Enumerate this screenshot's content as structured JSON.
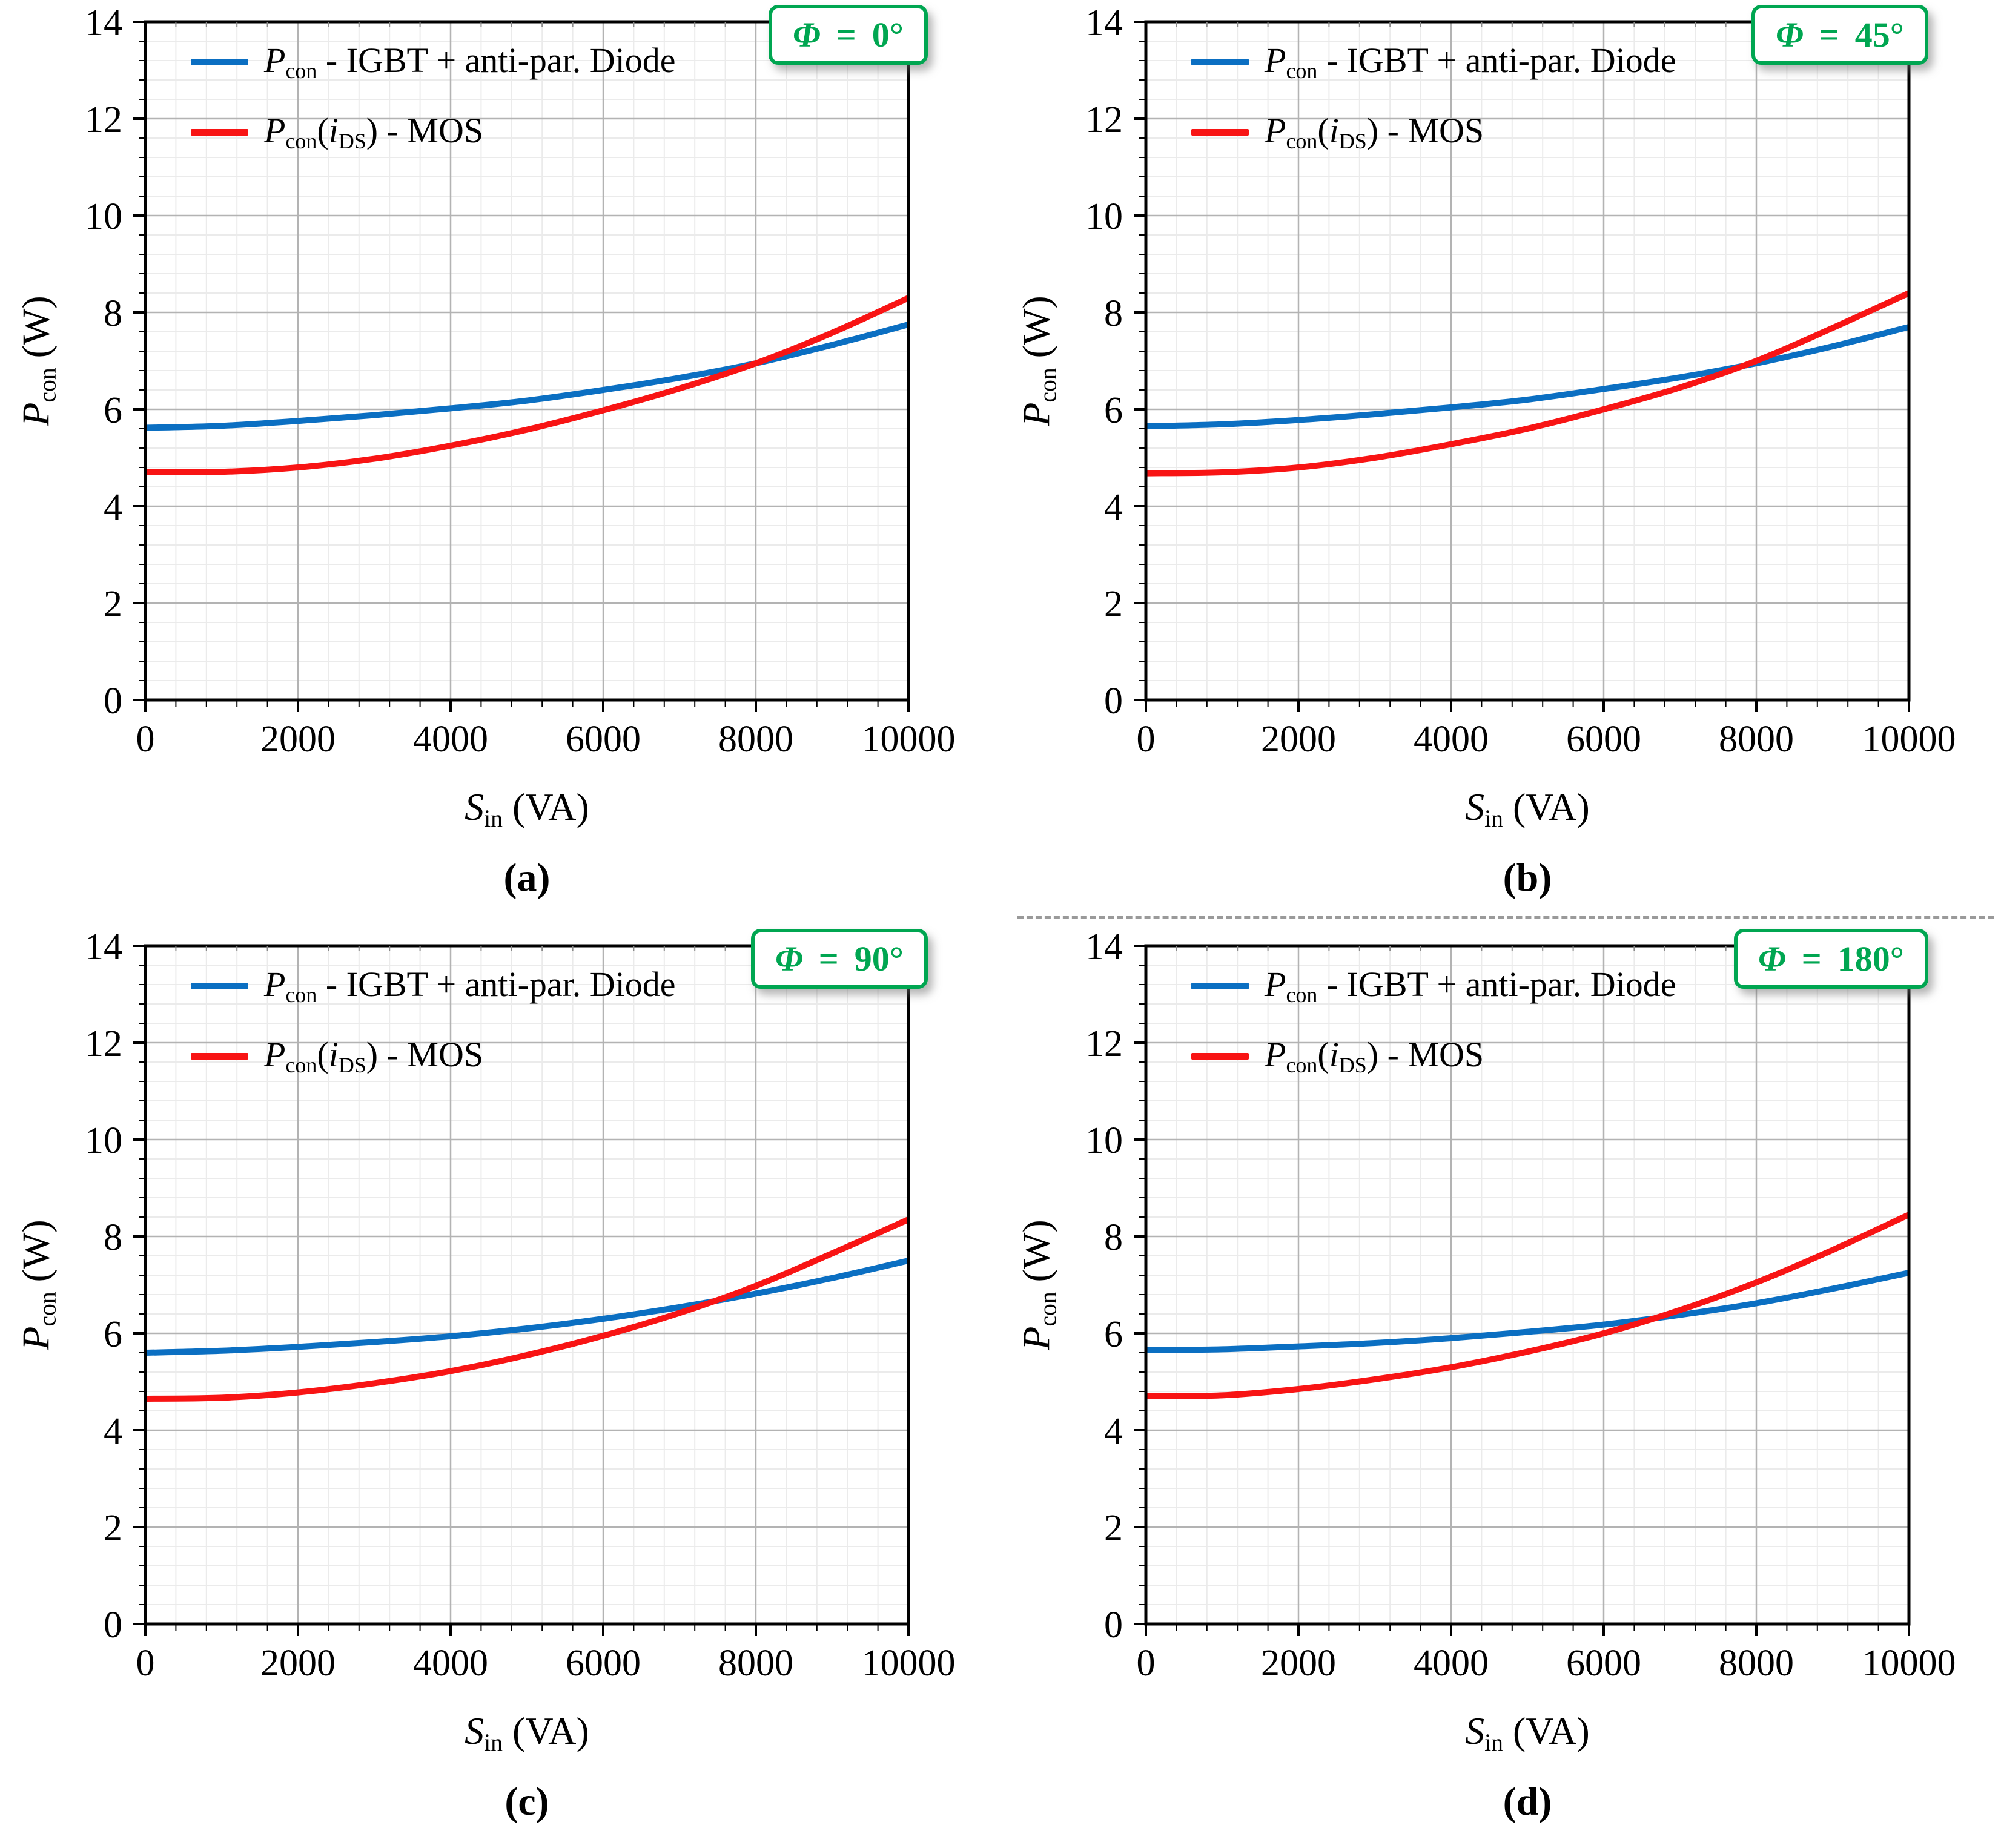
{
  "page": {
    "background": "#ffffff"
  },
  "colors": {
    "igbt_blue": "#0b6fc2",
    "mos_red": "#f81414",
    "badge_green": "#00a651",
    "major_grid": "#b3b3b3",
    "minor_grid": "#ebebeb",
    "axis_black": "#000000",
    "divider_gray": "#9a9a9a"
  },
  "axes": {
    "xlim": [
      0,
      10000
    ],
    "ylim": [
      0,
      14
    ],
    "x_ticks": [
      0,
      2000,
      4000,
      6000,
      8000,
      10000
    ],
    "y_ticks": [
      0,
      2,
      4,
      6,
      8,
      10,
      12,
      14
    ],
    "x_minor_step": 400,
    "y_minor_step": 0.4,
    "grid": true,
    "xlabel_segments": [
      {
        "t": "S",
        "italic": true
      },
      {
        "t": "in",
        "sub": true
      },
      {
        "t": " (VA)"
      }
    ],
    "ylabel_segments": [
      {
        "t": "P",
        "italic": true
      },
      {
        "t": "con",
        "sub": true
      },
      {
        "t": " (W)"
      }
    ]
  },
  "legend": {
    "position": "top-left",
    "entries": [
      {
        "series": "igbt",
        "color_key": "igbt_blue",
        "segments": [
          {
            "t": "P",
            "italic": true
          },
          {
            "t": "con",
            "sub": true
          },
          {
            "t": " - IGBT + anti-par. Diode"
          }
        ]
      },
      {
        "series": "mos",
        "color_key": "mos_red",
        "segments": [
          {
            "t": "P",
            "italic": true
          },
          {
            "t": "con",
            "sub": true
          },
          {
            "t": "("
          },
          {
            "t": "i",
            "italic": true
          },
          {
            "t": "DS",
            "sub": true
          },
          {
            "t": ") - MOS"
          }
        ]
      }
    ]
  },
  "chart_data": [
    {
      "type": "line",
      "caption": "(a)",
      "badge": "Φ = 0°",
      "badge_phi": "Φ",
      "badge_eq": "=",
      "badge_value": "0°",
      "xlabel": "Sin (VA)",
      "ylabel": "Pcon (W)",
      "xlim": [
        0,
        10000
      ],
      "ylim": [
        0,
        14
      ],
      "x": [
        0,
        1000,
        2000,
        3000,
        4000,
        5000,
        6000,
        7000,
        8000,
        9000,
        10000
      ],
      "series": [
        {
          "name": "Pcon - IGBT + anti-par. Diode",
          "color_key": "igbt_blue",
          "values": [
            5.62,
            5.66,
            5.76,
            5.88,
            6.02,
            6.18,
            6.4,
            6.65,
            6.95,
            7.33,
            7.75
          ]
        },
        {
          "name": "Pcon(iDS) - MOS",
          "color_key": "mos_red",
          "values": [
            4.7,
            4.71,
            4.8,
            4.98,
            5.25,
            5.58,
            5.98,
            6.43,
            6.95,
            7.58,
            8.3
          ]
        }
      ]
    },
    {
      "type": "line",
      "caption": "(b)",
      "badge": "Φ = 45°",
      "badge_phi": "Φ",
      "badge_eq": "=",
      "badge_value": "45°",
      "xlabel": "Sin (VA)",
      "ylabel": "Pcon (W)",
      "xlim": [
        0,
        10000
      ],
      "ylim": [
        0,
        14
      ],
      "x": [
        0,
        1000,
        2000,
        3000,
        4000,
        5000,
        6000,
        7000,
        8000,
        9000,
        10000
      ],
      "series": [
        {
          "name": "Pcon - IGBT + anti-par. Diode",
          "color_key": "igbt_blue",
          "values": [
            5.65,
            5.69,
            5.78,
            5.9,
            6.04,
            6.2,
            6.42,
            6.66,
            6.95,
            7.3,
            7.7
          ]
        },
        {
          "name": "Pcon(iDS) - MOS",
          "color_key": "mos_red",
          "values": [
            4.68,
            4.7,
            4.8,
            5.0,
            5.28,
            5.6,
            6.0,
            6.45,
            7.0,
            7.68,
            8.4
          ]
        }
      ]
    },
    {
      "type": "line",
      "caption": "(c)",
      "badge": "Φ = 90°",
      "badge_phi": "Φ",
      "badge_eq": "=",
      "badge_value": "90°",
      "xlabel": "Sin (VA)",
      "ylabel": "Pcon (W)",
      "xlim": [
        0,
        10000
      ],
      "ylim": [
        0,
        14
      ],
      "x": [
        0,
        1000,
        2000,
        3000,
        4000,
        5000,
        6000,
        7000,
        8000,
        9000,
        10000
      ],
      "series": [
        {
          "name": "Pcon - IGBT + anti-par. Diode",
          "color_key": "igbt_blue",
          "values": [
            5.6,
            5.64,
            5.72,
            5.82,
            5.94,
            6.1,
            6.3,
            6.54,
            6.82,
            7.14,
            7.5
          ]
        },
        {
          "name": "Pcon(iDS) - MOS",
          "color_key": "mos_red",
          "values": [
            4.65,
            4.67,
            4.78,
            4.97,
            5.22,
            5.55,
            5.95,
            6.42,
            6.98,
            7.65,
            8.35
          ]
        }
      ]
    },
    {
      "type": "line",
      "caption": "(d)",
      "badge": "Φ = 180°",
      "badge_phi": "Φ",
      "badge_eq": "=",
      "badge_value": "180°",
      "xlabel": "Sin (VA)",
      "ylabel": "Pcon (W)",
      "xlim": [
        0,
        10000
      ],
      "ylim": [
        0,
        14
      ],
      "x": [
        0,
        1000,
        2000,
        3000,
        4000,
        5000,
        6000,
        7000,
        8000,
        9000,
        10000
      ],
      "series": [
        {
          "name": "Pcon - IGBT + anti-par. Diode",
          "color_key": "igbt_blue",
          "values": [
            5.65,
            5.67,
            5.73,
            5.8,
            5.9,
            6.03,
            6.18,
            6.38,
            6.62,
            6.92,
            7.25
          ]
        },
        {
          "name": "Pcon(iDS) - MOS",
          "color_key": "mos_red",
          "values": [
            4.7,
            4.72,
            4.85,
            5.05,
            5.3,
            5.62,
            6.0,
            6.48,
            7.05,
            7.72,
            8.45
          ]
        }
      ]
    }
  ],
  "divider": {
    "present": true,
    "after_caption": "(b)",
    "side": "right-half"
  }
}
